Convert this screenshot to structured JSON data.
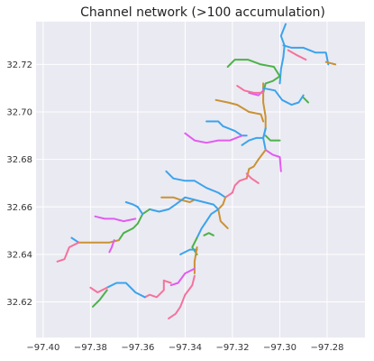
{
  "chart_data": {
    "type": "line",
    "title": "Channel network (>100 accumulation)",
    "xlabel": "",
    "ylabel": "",
    "xlim": [
      -97.403,
      -97.264
    ],
    "ylim": [
      32.605,
      32.738
    ],
    "xticks": [
      -97.4,
      -97.38,
      -97.36,
      -97.34,
      -97.32,
      -97.3,
      -97.28
    ],
    "xtick_labels": [
      "−97.40",
      "−97.38",
      "−97.36",
      "−97.34",
      "−97.32",
      "−97.30",
      "−97.28"
    ],
    "yticks": [
      32.62,
      32.64,
      32.66,
      32.68,
      32.7,
      32.72
    ],
    "ytick_labels": [
      "32.62",
      "32.64",
      "32.66",
      "32.68",
      "32.70",
      "32.72"
    ],
    "grid": true,
    "background": "#eaeaf2",
    "colors": {
      "blue": "#3ba3ec",
      "orange": "#ca9234",
      "green": "#4db249",
      "pink": "#f4729d",
      "magenta": "#e15cf0"
    },
    "series": [
      {
        "color": "blue",
        "x": [
          -97.3,
          -97.2995,
          -97.2985,
          -97.298,
          -97.2995,
          -97.2975
        ],
        "y": [
          32.712,
          32.718,
          32.723,
          32.728,
          32.732,
          32.737
        ]
      },
      {
        "color": "blue",
        "x": [
          -97.2985,
          -97.295,
          -97.29,
          -97.285,
          -97.2805,
          -97.2795
        ],
        "y": [
          32.728,
          32.727,
          32.727,
          32.725,
          32.725,
          32.72
        ]
      },
      {
        "color": "orange",
        "x": [
          -97.2805,
          -97.2765
        ],
        "y": [
          32.721,
          32.72
        ]
      },
      {
        "color": "pink",
        "x": [
          -97.2965,
          -97.293,
          -97.289
        ],
        "y": [
          32.726,
          32.724,
          32.722
        ]
      },
      {
        "color": "green",
        "x": [
          -97.322,
          -97.319,
          -97.3135,
          -97.308,
          -97.3025,
          -97.3
        ],
        "y": [
          32.719,
          32.722,
          32.722,
          32.72,
          32.719,
          32.715
        ]
      },
      {
        "color": "green",
        "x": [
          -97.3,
          -97.303,
          -97.306,
          -97.307
        ],
        "y": [
          32.715,
          32.713,
          32.712,
          32.708
        ]
      },
      {
        "color": "orange",
        "x": [
          -97.307,
          -97.307,
          -97.306,
          -97.306
        ],
        "y": [
          32.712,
          32.704,
          32.698,
          32.693
        ]
      },
      {
        "color": "blue",
        "x": [
          -97.307,
          -97.302,
          -97.299,
          -97.295,
          -97.292,
          -97.29
        ],
        "y": [
          32.71,
          32.709,
          32.705,
          32.703,
          32.704,
          32.707
        ]
      },
      {
        "color": "green",
        "x": [
          -97.29,
          -97.288
        ],
        "y": [
          32.706,
          32.704
        ]
      },
      {
        "color": "magenta",
        "x": [
          -97.313,
          -97.309,
          -97.307
        ],
        "y": [
          32.708,
          32.707,
          32.709
        ]
      },
      {
        "color": "pink",
        "x": [
          -97.318,
          -97.315,
          -97.311,
          -97.307
        ],
        "y": [
          32.711,
          32.709,
          32.708,
          32.708
        ]
      },
      {
        "color": "orange",
        "x": [
          -97.327,
          -97.322,
          -97.318,
          -97.313,
          -97.308,
          -97.307
        ],
        "y": [
          32.705,
          32.704,
          32.703,
          32.7,
          32.699,
          32.696
        ]
      },
      {
        "color": "blue",
        "x": [
          -97.331,
          -97.326,
          -97.324,
          -97.319,
          -97.316,
          -97.314
        ],
        "y": [
          32.696,
          32.696,
          32.694,
          32.692,
          32.69,
          32.69
        ]
      },
      {
        "color": "magenta",
        "x": [
          -97.34,
          -97.336,
          -97.331,
          -97.326,
          -97.321,
          -97.316
        ],
        "y": [
          32.691,
          32.688,
          32.687,
          32.688,
          32.688,
          32.69
        ]
      },
      {
        "color": "blue",
        "x": [
          -97.316,
          -97.313,
          -97.31,
          -97.307,
          -97.306
        ],
        "y": [
          32.686,
          32.688,
          32.689,
          32.689,
          32.693
        ]
      },
      {
        "color": "green",
        "x": [
          -97.306,
          -97.304,
          -97.3
        ],
        "y": [
          32.69,
          32.688,
          32.688
        ]
      },
      {
        "color": "blue",
        "x": [
          -97.306,
          -97.307,
          -97.306
        ],
        "y": [
          32.693,
          32.689,
          32.684
        ]
      },
      {
        "color": "magenta",
        "x": [
          -97.306,
          -97.303,
          -97.3,
          -97.2995
        ],
        "y": [
          32.684,
          32.682,
          32.681,
          32.675
        ]
      },
      {
        "color": "orange",
        "x": [
          -97.306,
          -97.309,
          -97.311,
          -97.313,
          -97.314
        ],
        "y": [
          32.684,
          32.68,
          32.677,
          32.676,
          32.672
        ]
      },
      {
        "color": "pink",
        "x": [
          -97.314,
          -97.312,
          -97.309
        ],
        "y": [
          32.674,
          32.672,
          32.67
        ]
      },
      {
        "color": "pink",
        "x": [
          -97.314,
          -97.317,
          -97.319,
          -97.32,
          -97.323
        ],
        "y": [
          32.672,
          32.671,
          32.669,
          32.666,
          32.664
        ]
      },
      {
        "color": "blue",
        "x": [
          -97.348,
          -97.345,
          -97.34,
          -97.336,
          -97.331,
          -97.326,
          -97.323
        ],
        "y": [
          32.675,
          32.672,
          32.671,
          32.671,
          32.668,
          32.666,
          32.664
        ]
      },
      {
        "color": "orange",
        "x": [
          -97.323,
          -97.324,
          -97.326,
          -97.325,
          -97.322
        ],
        "y": [
          32.664,
          32.661,
          32.659,
          32.654,
          32.651
        ]
      },
      {
        "color": "blue",
        "x": [
          -97.326,
          -97.328,
          -97.332,
          -97.336
        ],
        "y": [
          32.659,
          32.661,
          32.662,
          32.663
        ]
      },
      {
        "color": "orange",
        "x": [
          -97.35,
          -97.345,
          -97.342,
          -97.338,
          -97.336
        ],
        "y": [
          32.664,
          32.664,
          32.663,
          32.662,
          32.663
        ]
      },
      {
        "color": "blue",
        "x": [
          -97.326,
          -97.329,
          -97.331,
          -97.333,
          -97.335
        ],
        "y": [
          32.659,
          32.657,
          32.654,
          32.651,
          32.647
        ]
      },
      {
        "color": "blue",
        "x": [
          -97.336,
          -97.34,
          -97.344,
          -97.347,
          -97.351,
          -97.355
        ],
        "y": [
          32.663,
          32.664,
          32.661,
          32.659,
          32.658,
          32.659
        ]
      },
      {
        "color": "green",
        "x": [
          -97.355,
          -97.358,
          -97.36,
          -97.362,
          -97.366,
          -97.368
        ],
        "y": [
          32.659,
          32.657,
          32.653,
          32.651,
          32.649,
          32.646
        ]
      },
      {
        "color": "blue",
        "x": [
          -97.358,
          -97.36,
          -97.362,
          -97.365
        ],
        "y": [
          32.657,
          32.66,
          32.661,
          32.662
        ]
      },
      {
        "color": "magenta",
        "x": [
          -97.361,
          -97.366,
          -97.37,
          -97.374,
          -97.378
        ],
        "y": [
          32.655,
          32.654,
          32.655,
          32.655,
          32.656
        ]
      },
      {
        "color": "orange",
        "x": [
          -97.368,
          -97.372,
          -97.377,
          -97.382,
          -97.385
        ],
        "y": [
          32.646,
          32.645,
          32.645,
          32.645,
          32.645
        ]
      },
      {
        "color": "blue",
        "x": [
          -97.385,
          -97.388
        ],
        "y": [
          32.645,
          32.647
        ]
      },
      {
        "color": "pink",
        "x": [
          -97.385,
          -97.389,
          -97.391,
          -97.394
        ],
        "y": [
          32.645,
          32.643,
          32.638,
          32.637
        ]
      },
      {
        "color": "magenta",
        "x": [
          -97.37,
          -97.371,
          -97.372
        ],
        "y": [
          32.646,
          32.643,
          32.641
        ]
      },
      {
        "color": "green",
        "x": [
          -97.328,
          -97.33,
          -97.332
        ],
        "y": [
          32.648,
          32.649,
          32.648
        ]
      },
      {
        "color": "green",
        "x": [
          -97.335,
          -97.337,
          -97.335
        ],
        "y": [
          32.647,
          32.643,
          32.64
        ]
      },
      {
        "color": "blue",
        "x": [
          -97.335,
          -97.338,
          -97.342
        ],
        "y": [
          32.642,
          32.642,
          32.64
        ]
      },
      {
        "color": "orange",
        "x": [
          -97.335,
          -97.336,
          -97.336
        ],
        "y": [
          32.643,
          32.637,
          32.632
        ]
      },
      {
        "color": "magenta",
        "x": [
          -97.336,
          -97.34,
          -97.343,
          -97.346
        ],
        "y": [
          32.634,
          32.632,
          32.628,
          32.627
        ]
      },
      {
        "color": "pink",
        "x": [
          -97.336,
          -97.337,
          -97.34,
          -97.342,
          -97.344,
          -97.347
        ],
        "y": [
          32.631,
          32.627,
          32.623,
          32.618,
          32.615,
          32.613
        ]
      },
      {
        "color": "pink",
        "x": [
          -97.346,
          -97.349,
          -97.349,
          -97.352,
          -97.355,
          -97.357
        ],
        "y": [
          32.628,
          32.629,
          32.625,
          32.622,
          32.623,
          32.622
        ]
      },
      {
        "color": "blue",
        "x": [
          -97.357,
          -97.361,
          -97.365,
          -97.369,
          -97.373
        ],
        "y": [
          32.622,
          32.624,
          32.628,
          32.628,
          32.626
        ]
      },
      {
        "color": "pink",
        "x": [
          -97.373,
          -97.377,
          -97.38
        ],
        "y": [
          32.626,
          32.624,
          32.626
        ]
      },
      {
        "color": "green",
        "x": [
          -97.373,
          -97.376,
          -97.379
        ],
        "y": [
          32.625,
          32.621,
          32.618
        ]
      }
    ]
  }
}
